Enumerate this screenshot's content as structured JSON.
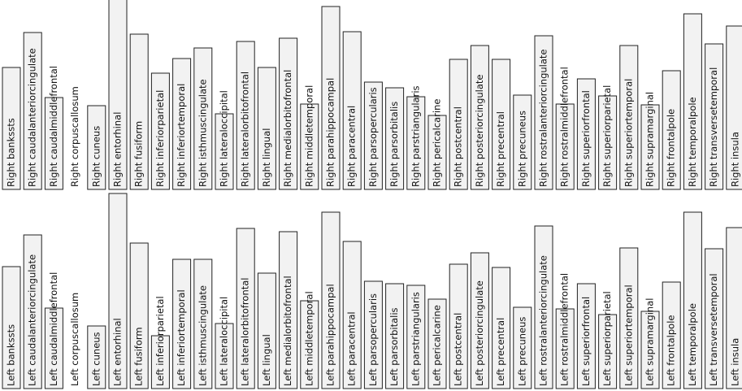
{
  "chart_data": [
    {
      "type": "bar",
      "color": "#f2f2f2",
      "ylim": [
        0,
        233
      ],
      "categories": [
        "Right bankssts",
        "Right caudalanteriorcingulate",
        "Right caudalmiddlefrontal",
        "Right corpuscallosum",
        "Right cuneus",
        "Right entorhinal",
        "Right fusiform",
        "Right inferiorparietal",
        "Right inferiortemporal",
        "Right isthmuscingulate",
        "Right lateraloccipital",
        "Right lateralorbitofrontal",
        "Right lingual",
        "Right medialorbitofrontal",
        "Right middletemporal",
        "Right parahippocampal",
        "Right paracentral",
        "Right parsopercularis",
        "Right parsorbitalis",
        "Right parstriangularis",
        "Right pericalcarine",
        "Right postcentral",
        "Right posteriorcingulate",
        "Right precentral",
        "Right precuneus",
        "Right rostralanteriorcingulate",
        "Right rostralmiddlefrontal",
        "Right superiorfrontal",
        "Right superiorparietal",
        "Right superiortemporal",
        "Right supramarginal",
        "Right frontalpole",
        "Right temporalpole",
        "Right transversetemporal",
        "Right insula"
      ],
      "values": [
        150,
        193,
        113,
        0,
        103,
        240,
        191,
        143,
        161,
        174,
        93,
        182,
        150,
        186,
        105,
        225,
        194,
        132,
        125,
        114,
        91,
        160,
        177,
        160,
        116,
        189,
        105,
        136,
        115,
        177,
        104,
        146,
        216,
        179,
        201
      ]
    },
    {
      "type": "bar",
      "color": "#f2f2f2",
      "ylim": [
        0,
        233
      ],
      "categories": [
        "Left bankssts",
        "Left caudalanteriorcingulate",
        "Left caudalmiddlefrontal",
        "Left corpuscallosum",
        "Left cuneus",
        "Left entorhinal",
        "Left fusiform",
        "Left inferiorparietal",
        "Left inferiortemporal",
        "Left isthmuscingulate",
        "Left lateraloccipital",
        "Left lateralorbitofrontal",
        "Left lingual",
        "Left medialorbitofrontal",
        "Left middletemporal",
        "Left parahippocampal",
        "Left paracentral",
        "Left parsopercularis",
        "Left parsorbitalis",
        "Left parstriangularis",
        "Left pericalcarine",
        "Left postcentral",
        "Left posteriorcingulate",
        "Left precentral",
        "Left precuneus",
        "Left rostralanteriorcingulate",
        "Left rostralmiddlefrontal",
        "Left superiorfrontal",
        "Left superiorparietal",
        "Left superiortemporal",
        "Left supramarginal",
        "Left frontalpole",
        "Left temporalpole",
        "Left transversetemporal",
        "Left insula"
      ],
      "values": [
        150,
        189,
        99,
        0,
        77,
        240,
        179,
        65,
        159,
        159,
        80,
        197,
        142,
        193,
        108,
        217,
        181,
        132,
        129,
        127,
        110,
        153,
        167,
        149,
        100,
        200,
        98,
        129,
        91,
        173,
        95,
        131,
        217,
        172,
        198
      ]
    }
  ]
}
